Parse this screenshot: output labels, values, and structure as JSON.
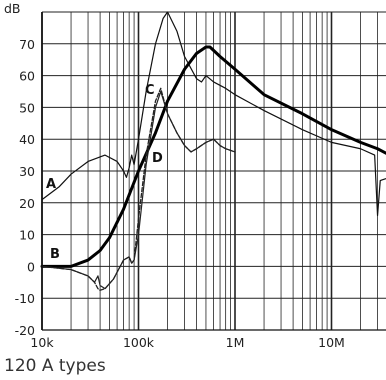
{
  "caption": "120 A types",
  "chart_data": {
    "type": "line",
    "ylabel": "dB",
    "x_scale": "log",
    "xlim": [
      10000,
      40000000
    ],
    "ylim": [
      -20,
      80
    ],
    "grid": true,
    "y_ticks": [
      -20,
      -10,
      0,
      10,
      20,
      30,
      40,
      50,
      60,
      70
    ],
    "x_ticks": [
      {
        "value": 10000,
        "label": "10k"
      },
      {
        "value": 100000,
        "label": "100k"
      },
      {
        "value": 1000000,
        "label": "1M"
      },
      {
        "value": 10000000,
        "label": "10M"
      }
    ],
    "series": [
      {
        "name": "A",
        "style": "thin",
        "x": [
          10000,
          15000,
          20000,
          30000,
          45000,
          60000,
          70000,
          75000,
          80000,
          85000,
          90000,
          100000,
          120000,
          150000,
          180000,
          200000,
          250000,
          300000,
          400000,
          450000,
          500000,
          600000,
          800000,
          1000000,
          2000000,
          5000000,
          10000000,
          20000000,
          28000000,
          30000000,
          32000000,
          40000000
        ],
        "y": [
          21,
          25,
          29,
          33,
          35,
          33,
          30,
          28,
          31,
          35,
          32,
          40,
          55,
          70,
          78,
          80,
          74,
          66,
          59,
          58,
          60,
          58,
          56,
          54,
          49,
          43,
          39,
          37,
          35,
          16,
          27,
          28
        ]
      },
      {
        "name": "B",
        "style": "thick",
        "x": [
          10000,
          15000,
          20000,
          30000,
          40000,
          50000,
          70000,
          100000,
          150000,
          200000,
          300000,
          400000,
          500000,
          550000,
          700000,
          1000000,
          2000000,
          5000000,
          10000000,
          20000000,
          30000000,
          40000000
        ],
        "y": [
          0,
          0,
          0,
          2,
          5,
          9,
          18,
          30,
          42,
          52,
          62,
          67,
          69,
          69,
          66,
          62,
          54,
          48,
          43,
          39,
          37,
          35
        ]
      },
      {
        "name": "C",
        "style": "dashed",
        "x": [
          10000,
          20000,
          30000,
          35000,
          38000,
          40000,
          45000,
          55000,
          70000,
          80000,
          85000,
          90000,
          100000,
          120000,
          150000,
          170000,
          200000,
          250000,
          300000,
          350000,
          400000,
          500000,
          600000,
          700000,
          800000,
          1000000
        ],
        "y": [
          0,
          -1,
          -3,
          -5,
          -7,
          -7.5,
          -7,
          -4,
          2,
          3,
          1,
          2,
          15,
          35,
          52,
          56,
          48,
          42,
          38,
          36,
          37,
          39,
          40,
          38,
          37,
          36
        ]
      },
      {
        "name": "D",
        "style": "solid",
        "x": [
          10000,
          20000,
          30000,
          35000,
          38000,
          40000,
          45000,
          55000,
          70000,
          80000,
          85000,
          90000,
          100000,
          120000,
          150000,
          170000,
          200000,
          250000,
          300000,
          350000,
          400000,
          500000,
          600000,
          700000,
          800000,
          1000000
        ],
        "y": [
          0,
          -1,
          -3,
          -5,
          -3,
          -6,
          -7,
          -4,
          2,
          3,
          1,
          2,
          10,
          32,
          50,
          55,
          48,
          42,
          38,
          36,
          37,
          39,
          40,
          38,
          37,
          36
        ]
      }
    ]
  }
}
